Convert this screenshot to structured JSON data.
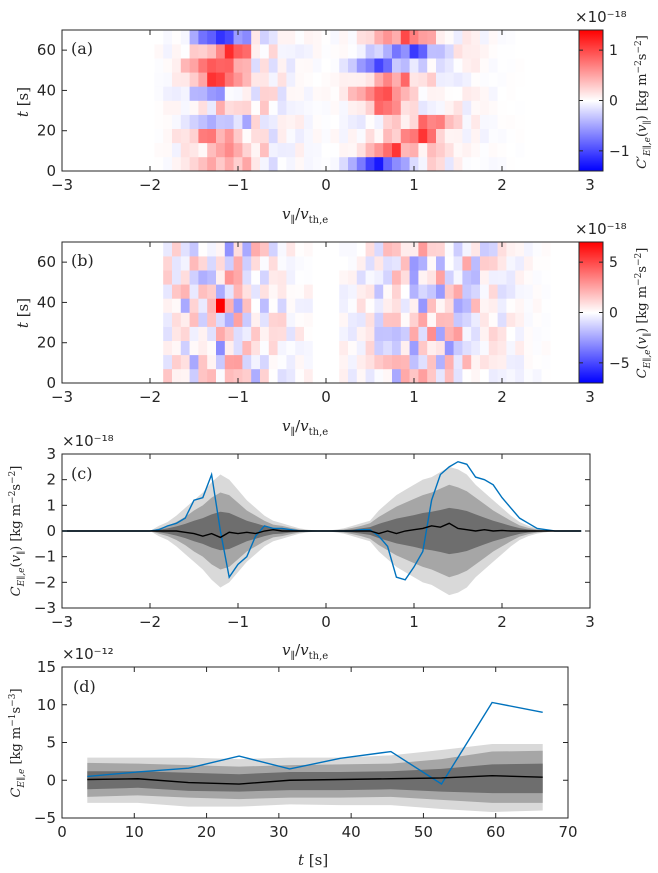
{
  "chart_data": [
    {
      "panel": "(a)",
      "type": "heatmap",
      "xlabel": "v∥/vth,e",
      "ylabel": "t [s]",
      "xlim": [
        -3,
        3
      ],
      "ylim": [
        0,
        70
      ],
      "xticks": [
        "-3",
        "-2",
        "-1",
        "0",
        "1",
        "2",
        "3"
      ],
      "yticks": [
        "0",
        "20",
        "40",
        "60"
      ],
      "colorbar": {
        "label": "C′E∥,e(v∥) [kg m⁻² s⁻²]",
        "exponent": "×10⁻¹⁸",
        "ticks": [
          "-1",
          "0",
          "1"
        ],
        "range": [
          -1.4,
          1.4
        ]
      },
      "x_bins": {
        "start": -1.95,
        "end": 2.25,
        "width": 0.1
      },
      "t_rows": [
        3.5,
        10.5,
        17.5,
        24.5,
        31.5,
        38.5,
        45.5,
        52.5,
        59.5,
        66.5
      ],
      "row_profiles": [
        {
          "t": 3.5,
          "neg_peak": [
            -1.2,
            0.5
          ],
          "pos_peak": [
            0.6,
            -1.1
          ]
        },
        {
          "t": 10.5,
          "neg_peak": [
            -1.1,
            0.7
          ],
          "pos_peak": [
            0.8,
            0.8
          ]
        },
        {
          "t": 17.5,
          "neg_peak": [
            -1.3,
            0.6
          ],
          "pos_peak": [
            1.1,
            0.8
          ]
        },
        {
          "t": 24.5,
          "neg_peak": [
            -1.2,
            -0.6
          ],
          "pos_peak": [
            1.2,
            0.7
          ]
        },
        {
          "t": 31.5,
          "neg_peak": [
            -1.0,
            0.5
          ],
          "pos_peak": [
            0.7,
            0.7
          ]
        },
        {
          "t": 38.5,
          "neg_peak": [
            -1.3,
            -0.6
          ],
          "pos_peak": [
            0.6,
            0.9
          ]
        },
        {
          "t": 45.5,
          "neg_peak": [
            -1.2,
            1.2
          ],
          "pos_peak": [
            0.8,
            0.7
          ]
        },
        {
          "t": 52.5,
          "neg_peak": [
            -1.3,
            1.0
          ],
          "pos_peak": [
            0.6,
            -1.0
          ]
        },
        {
          "t": 59.5,
          "neg_peak": [
            -1.1,
            0.9
          ],
          "pos_peak": [
            0.9,
            -0.9
          ]
        },
        {
          "t": 66.5,
          "neg_peak": [
            -1.2,
            -1.0
          ],
          "pos_peak": [
            0.9,
            0.7
          ]
        }
      ]
    },
    {
      "panel": "(b)",
      "type": "heatmap",
      "xlabel": "v∥/vth,e",
      "ylabel": "t [s]",
      "xlim": [
        -3,
        3
      ],
      "ylim": [
        0,
        70
      ],
      "xticks": [
        "-3",
        "-2",
        "-1",
        "0",
        "1",
        "2",
        "3"
      ],
      "yticks": [
        "0",
        "20",
        "40",
        "60"
      ],
      "colorbar": {
        "label": "CE∥,e(v∥) [kg m⁻² s⁻²]",
        "exponent": "×10⁻¹⁸",
        "ticks": [
          "-5",
          "0",
          "5"
        ],
        "range": [
          -7,
          7
        ]
      },
      "x_bins": {
        "start": -1.85,
        "end": 2.55,
        "width": 0.1
      },
      "t_rows": [
        3.5,
        10.5,
        17.5,
        24.5,
        31.5,
        38.5,
        45.5,
        52.5,
        59.5,
        66.5
      ],
      "peak": {
        "v": -1.2,
        "t": 38.5,
        "value": 7
      }
    },
    {
      "panel": "(c)",
      "type": "line",
      "xlabel": "v∥/vth,e",
      "ylabel": "CE∥,e(v∥) [kg m⁻² s⁻²]",
      "exponent": "×10⁻¹⁸",
      "xlim": [
        -3,
        3
      ],
      "ylim": [
        -3,
        3
      ],
      "xticks": [
        "-3",
        "-2",
        "-1",
        "0",
        "1",
        "2",
        "3"
      ],
      "yticks": [
        "-3",
        "-2",
        "-1",
        "0",
        "1",
        "2",
        "3"
      ],
      "x": [
        -3.0,
        -2.9,
        -2.8,
        -2.7,
        -2.6,
        -2.5,
        -2.4,
        -2.3,
        -2.2,
        -2.1,
        -2.0,
        -1.9,
        -1.8,
        -1.7,
        -1.6,
        -1.5,
        -1.4,
        -1.3,
        -1.2,
        -1.1,
        -1.0,
        -0.9,
        -0.8,
        -0.7,
        -0.6,
        -0.5,
        -0.4,
        -0.3,
        -0.2,
        -0.1,
        0.0,
        0.1,
        0.2,
        0.3,
        0.4,
        0.5,
        0.6,
        0.7,
        0.8,
        0.9,
        1.0,
        1.1,
        1.2,
        1.3,
        1.4,
        1.5,
        1.6,
        1.7,
        1.8,
        1.9,
        2.0,
        2.1,
        2.2,
        2.3,
        2.4,
        2.5,
        2.6,
        2.7,
        2.8,
        2.9
      ],
      "series": [
        {
          "color": "#0072BD",
          "values": [
            0,
            0,
            0,
            0,
            0,
            0,
            0,
            0,
            0,
            0,
            0,
            0.05,
            0.2,
            0.3,
            0.5,
            1.2,
            1.3,
            2.2,
            0.0,
            -1.8,
            -1.3,
            -1.0,
            -0.2,
            0.2,
            0.1,
            0.1,
            0.05,
            0,
            0,
            0,
            0,
            0,
            0,
            0,
            0.05,
            0.05,
            -0.2,
            -0.6,
            -1.8,
            -1.9,
            -1.4,
            -0.8,
            1.2,
            2.2,
            2.5,
            2.7,
            2.6,
            2.1,
            2.0,
            1.8,
            1.3,
            0.9,
            0.5,
            0.3,
            0.1,
            0.05,
            0,
            0,
            0,
            0
          ]
        },
        {
          "color": "#000000",
          "values": [
            0,
            0,
            0,
            0,
            0,
            0,
            0,
            0,
            0,
            0,
            0,
            0,
            0,
            0,
            -0.05,
            -0.1,
            -0.2,
            -0.1,
            -0.25,
            -0.05,
            -0.1,
            -0.05,
            -0.1,
            0,
            0.05,
            0,
            0,
            0,
            0,
            0,
            0,
            0,
            0,
            0,
            0,
            0,
            -0.1,
            0,
            -0.1,
            0,
            0.05,
            0.1,
            0.2,
            0.15,
            0.3,
            0.1,
            0.05,
            0,
            0.05,
            0,
            0.02,
            0,
            0,
            0,
            0,
            0,
            0,
            0,
            0,
            0
          ]
        }
      ],
      "bands": [
        {
          "color": "#d9d9d9",
          "half_width": [
            0,
            0,
            0,
            0,
            0,
            0,
            0,
            0,
            0,
            0,
            0,
            0.2,
            0.35,
            0.6,
            0.9,
            1.2,
            1.5,
            1.9,
            2.2,
            2.0,
            1.6,
            1.2,
            0.9,
            0.6,
            0.4,
            0.3,
            0.2,
            0.1,
            0.05,
            0.02,
            0,
            0.05,
            0.1,
            0.2,
            0.3,
            0.4,
            0.8,
            1.1,
            1.4,
            1.6,
            1.8,
            2.0,
            2.1,
            2.3,
            2.5,
            2.4,
            2.2,
            1.8,
            1.5,
            1.2,
            0.9,
            0.6,
            0.35,
            0.2,
            0.1,
            0.05,
            0,
            0,
            0,
            0
          ]
        },
        {
          "color": "#a6a6a6",
          "half_width": [
            0,
            0,
            0,
            0,
            0,
            0,
            0,
            0,
            0,
            0,
            0,
            0.1,
            0.2,
            0.35,
            0.55,
            0.8,
            1.0,
            1.3,
            1.5,
            1.4,
            1.1,
            0.8,
            0.6,
            0.4,
            0.25,
            0.2,
            0.12,
            0.06,
            0.03,
            0.01,
            0,
            0.03,
            0.06,
            0.12,
            0.2,
            0.3,
            0.55,
            0.75,
            0.95,
            1.1,
            1.25,
            1.4,
            1.5,
            1.65,
            1.8,
            1.7,
            1.55,
            1.3,
            1.05,
            0.8,
            0.6,
            0.4,
            0.22,
            0.12,
            0.06,
            0.03,
            0,
            0,
            0,
            0
          ]
        },
        {
          "color": "#6e6e6e",
          "half_width": [
            0,
            0,
            0,
            0,
            0,
            0,
            0,
            0,
            0,
            0,
            0,
            0.05,
            0.1,
            0.18,
            0.28,
            0.4,
            0.5,
            0.65,
            0.75,
            0.7,
            0.55,
            0.4,
            0.3,
            0.2,
            0.12,
            0.1,
            0.06,
            0.03,
            0.015,
            0.005,
            0,
            0.015,
            0.03,
            0.06,
            0.1,
            0.15,
            0.28,
            0.38,
            0.48,
            0.55,
            0.62,
            0.7,
            0.75,
            0.82,
            0.9,
            0.85,
            0.78,
            0.65,
            0.52,
            0.4,
            0.3,
            0.2,
            0.11,
            0.06,
            0.03,
            0.015,
            0,
            0,
            0,
            0
          ]
        }
      ]
    },
    {
      "panel": "(d)",
      "type": "line",
      "xlabel": "t [s]",
      "ylabel": "CE∥,e [kg m⁻¹ s⁻³]",
      "exponent": "×10⁻¹²",
      "xlim": [
        0,
        70
      ],
      "ylim": [
        -5,
        15
      ],
      "xticks": [
        "0",
        "10",
        "20",
        "30",
        "40",
        "50",
        "60",
        "70"
      ],
      "yticks": [
        "-5",
        "0",
        "5",
        "10",
        "15"
      ],
      "x": [
        3.5,
        10.5,
        17.5,
        24.5,
        31.5,
        38.5,
        45.5,
        52.5,
        59.5,
        66.5
      ],
      "series": [
        {
          "color": "#0072BD",
          "values": [
            0.5,
            1.1,
            1.6,
            3.2,
            1.5,
            2.9,
            3.8,
            -0.5,
            10.3,
            9.0
          ]
        },
        {
          "color": "#000000",
          "values": [
            0.1,
            0.2,
            -0.3,
            -0.5,
            0.0,
            0.1,
            0.2,
            0.3,
            0.6,
            0.4
          ]
        }
      ],
      "bands": [
        {
          "color": "#d9d9d9",
          "lower": [
            -3.0,
            -3.0,
            -3.5,
            -3.5,
            -3.2,
            -3.3,
            -3.3,
            -3.8,
            -4.2,
            -4.0
          ],
          "upper": [
            3.0,
            3.0,
            3.0,
            2.8,
            3.0,
            3.0,
            3.3,
            4.0,
            4.8,
            4.8
          ]
        },
        {
          "color": "#a6a6a6",
          "lower": [
            -2.2,
            -2.0,
            -2.3,
            -2.5,
            -2.3,
            -2.3,
            -2.2,
            -2.6,
            -3.0,
            -3.0
          ],
          "upper": [
            2.3,
            2.2,
            2.0,
            1.8,
            2.0,
            2.1,
            2.2,
            2.8,
            3.8,
            3.9
          ]
        },
        {
          "color": "#6e6e6e",
          "lower": [
            -1.2,
            -1.0,
            -1.4,
            -1.5,
            -1.3,
            -1.3,
            -1.2,
            -1.5,
            -1.7,
            -1.7
          ],
          "upper": [
            1.2,
            1.2,
            1.0,
            0.8,
            1.1,
            1.1,
            1.2,
            1.5,
            2.1,
            2.2
          ]
        }
      ]
    }
  ]
}
